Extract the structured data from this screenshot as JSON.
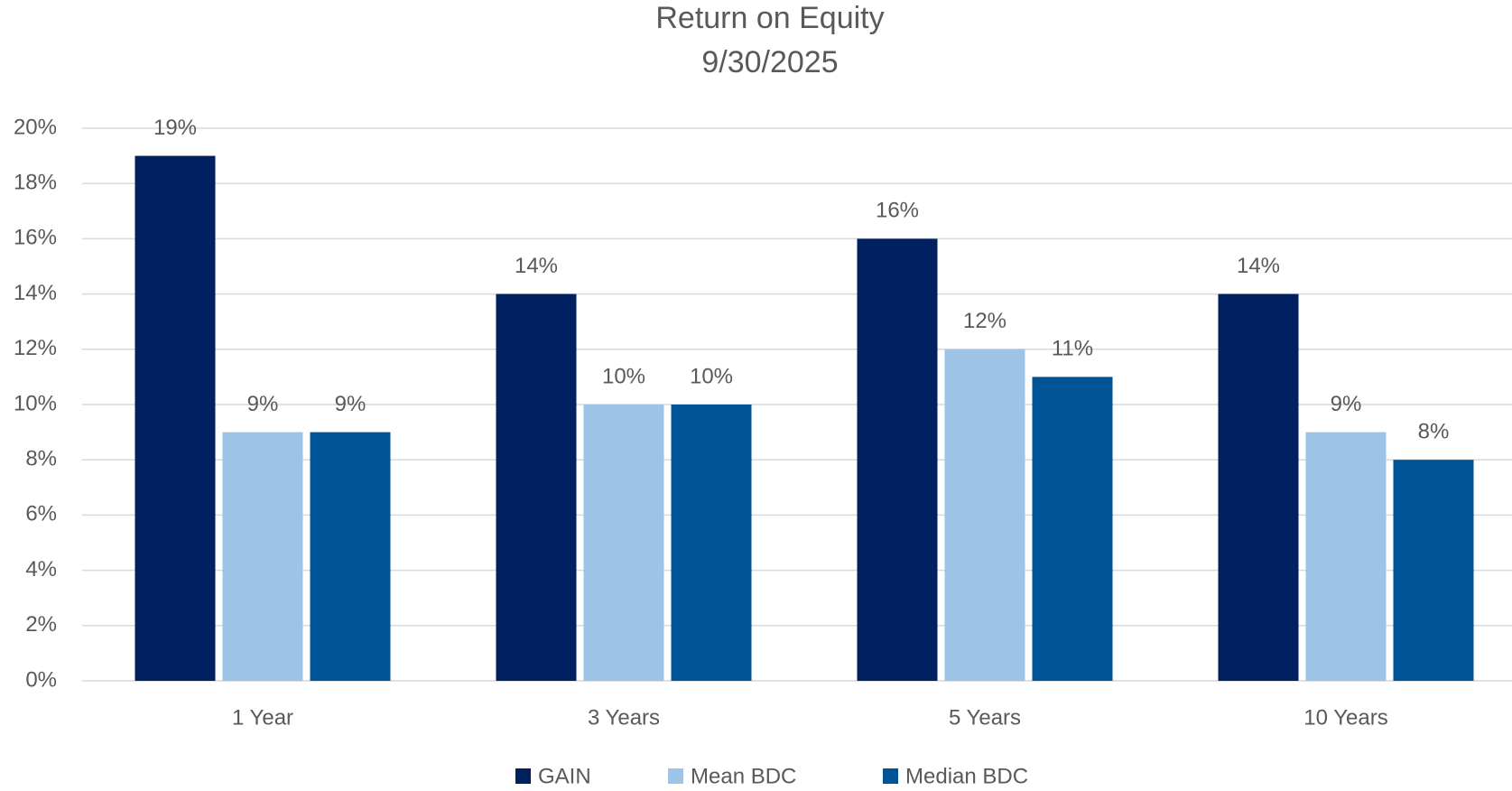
{
  "chart_data": {
    "type": "bar",
    "title": "Return on Equity",
    "subtitle": "9/30/2025",
    "categories": [
      "1 Year",
      "3 Years",
      "5 Years",
      "10 Years"
    ],
    "series": [
      {
        "name": "GAIN",
        "color": "#002060",
        "values": [
          19,
          14,
          16,
          14
        ],
        "value_labels": [
          "19%",
          "14%",
          "16%",
          "14%"
        ]
      },
      {
        "name": "Mean BDC",
        "color": "#9dc3e6",
        "values": [
          9,
          10,
          12,
          9
        ],
        "value_labels": [
          "9%",
          "10%",
          "12%",
          "9%"
        ]
      },
      {
        "name": "Median BDC",
        "color": "#005395",
        "values": [
          9,
          10,
          11,
          8
        ],
        "value_labels": [
          "9%",
          "10%",
          "11%",
          "8%"
        ]
      }
    ],
    "ylim": [
      0,
      20
    ],
    "yticks": [
      {
        "value": 0,
        "label": "0%"
      },
      {
        "value": 2,
        "label": "2%"
      },
      {
        "value": 4,
        "label": "4%"
      },
      {
        "value": 6,
        "label": "6%"
      },
      {
        "value": 8,
        "label": "8%"
      },
      {
        "value": 10,
        "label": "10%"
      },
      {
        "value": 12,
        "label": "12%"
      },
      {
        "value": 14,
        "label": "14%"
      },
      {
        "value": 16,
        "label": "16%"
      },
      {
        "value": 18,
        "label": "18%"
      },
      {
        "value": 20,
        "label": "20%"
      }
    ],
    "grid": true,
    "legend": "bottom"
  }
}
